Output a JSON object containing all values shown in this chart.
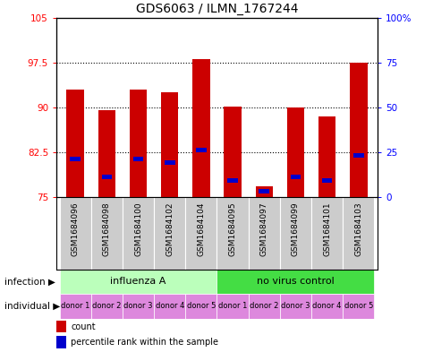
{
  "title": "GDS6063 / ILMN_1767244",
  "samples": [
    "GSM1684096",
    "GSM1684098",
    "GSM1684100",
    "GSM1684102",
    "GSM1684104",
    "GSM1684095",
    "GSM1684097",
    "GSM1684099",
    "GSM1684101",
    "GSM1684103"
  ],
  "bar_heights": [
    93.0,
    89.5,
    93.0,
    92.5,
    98.0,
    90.2,
    76.8,
    90.0,
    88.5,
    97.5
  ],
  "percentile_ranks": [
    20,
    10,
    20,
    18,
    25,
    8,
    2,
    10,
    8,
    22
  ],
  "ylim_left": [
    75,
    105
  ],
  "yticks_left": [
    75,
    82.5,
    90,
    97.5,
    105
  ],
  "yticks_right": [
    0,
    25,
    50,
    75,
    100
  ],
  "ytick_labels_right": [
    "0",
    "25",
    "50",
    "75",
    "100%"
  ],
  "bar_color": "#cc0000",
  "percentile_color": "#0000cc",
  "bar_width": 0.55,
  "infection_groups": [
    {
      "label": "influenza A",
      "start": 0,
      "end": 5,
      "color": "#bbffbb"
    },
    {
      "label": "no virus control",
      "start": 5,
      "end": 10,
      "color": "#44dd44"
    }
  ],
  "individual_labels": [
    "donor 1",
    "donor 2",
    "donor 3",
    "donor 4",
    "donor 5",
    "donor 1",
    "donor 2",
    "donor 3",
    "donor 4",
    "donor 5"
  ],
  "individual_color": "#dd88dd",
  "sample_bg_color": "#cccccc",
  "infection_label": "infection",
  "individual_label_text": "individual",
  "legend_count": "count",
  "legend_percentile": "percentile rank within the sample",
  "title_fontsize": 10,
  "tick_fontsize": 7.5,
  "sample_fontsize": 6.5,
  "infection_fontsize": 8,
  "individual_fontsize": 6,
  "legend_fontsize": 7
}
